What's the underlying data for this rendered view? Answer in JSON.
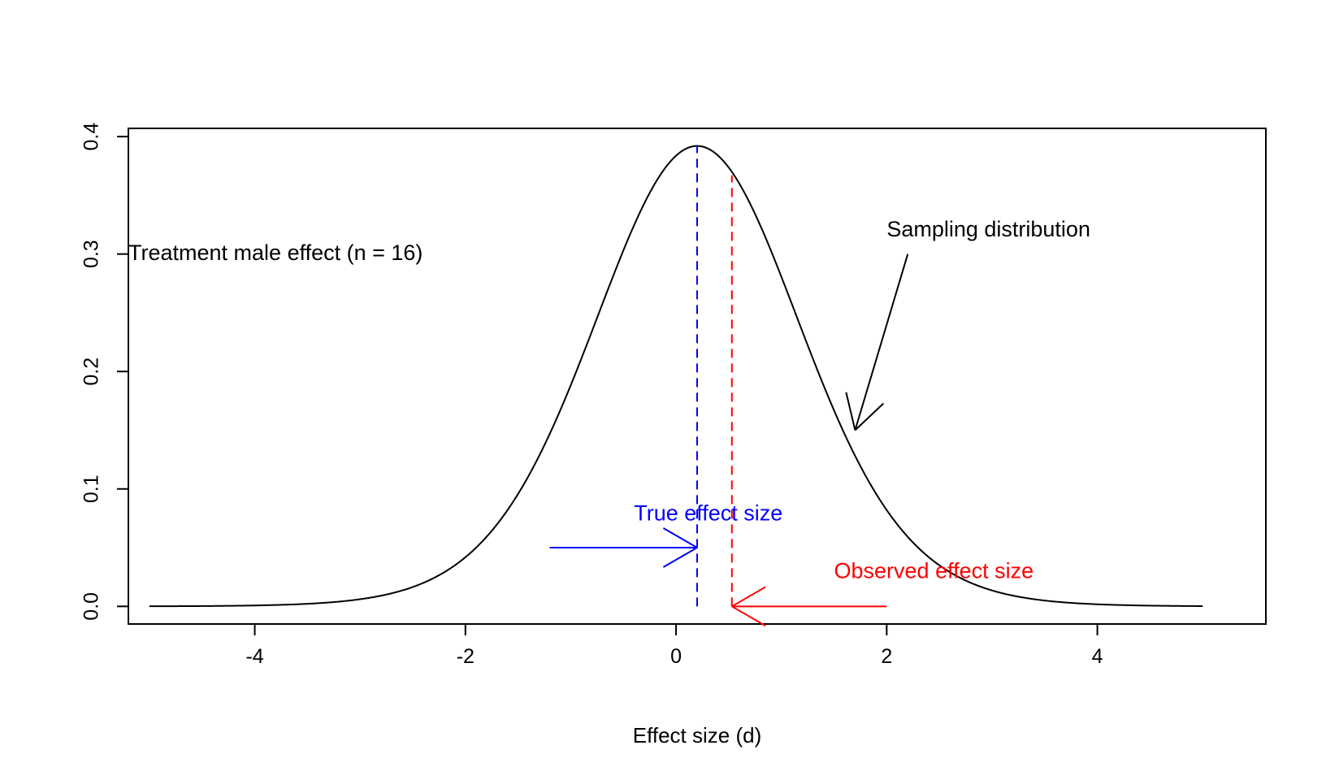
{
  "chart_data": {
    "type": "line",
    "title": "",
    "xlabel": "Effect size (d)",
    "ylabel": "",
    "xlim": [
      -5.2,
      5.6
    ],
    "ylim": [
      -0.015,
      0.407
    ],
    "x_ticks": [
      -4,
      -2,
      0,
      2,
      4
    ],
    "x_tick_labels": [
      "-4",
      "-2",
      "0",
      "2",
      "4"
    ],
    "y_ticks": [
      0.0,
      0.1,
      0.2,
      0.3,
      0.4
    ],
    "y_tick_labels": [
      "0.0",
      "0.1",
      "0.2",
      "0.3",
      "0.4"
    ],
    "grid": false,
    "series": [
      {
        "kind": "t-density curve",
        "x_range": [
          -5,
          5
        ],
        "location": 0.2,
        "df": 15,
        "peak_density": 0.392,
        "color": "#000000"
      }
    ],
    "reference_lines": [
      {
        "label": "True effect size",
        "x": 0.2,
        "y_top": 0.392,
        "style": "dashed",
        "color": "#0000ff"
      },
      {
        "label": "Observed effect size",
        "x": 0.53,
        "y_top": 0.367,
        "style": "dashed",
        "color": "#ff0000"
      }
    ],
    "annotations": [
      {
        "text": "Treatment male effect (n = 16)",
        "x": -5.2,
        "y": 0.3,
        "color": "#000000"
      },
      {
        "text": "Sampling distribution",
        "x": 2.0,
        "y": 0.32,
        "color": "#000000",
        "arrow": {
          "from": [
            2.2,
            0.3
          ],
          "to": [
            1.7,
            0.15
          ]
        }
      },
      {
        "text": "True effect size",
        "x": -0.4,
        "y": 0.078,
        "color": "#0000ff",
        "arrow": {
          "from": [
            -1.2,
            0.05
          ],
          "to": [
            0.2,
            0.05
          ]
        }
      },
      {
        "text": "Observed effect size",
        "x": 1.5,
        "y": 0.029,
        "color": "#ff0000",
        "arrow": {
          "from": [
            2.0,
            0.0
          ],
          "to": [
            0.53,
            0.0
          ]
        }
      }
    ]
  }
}
